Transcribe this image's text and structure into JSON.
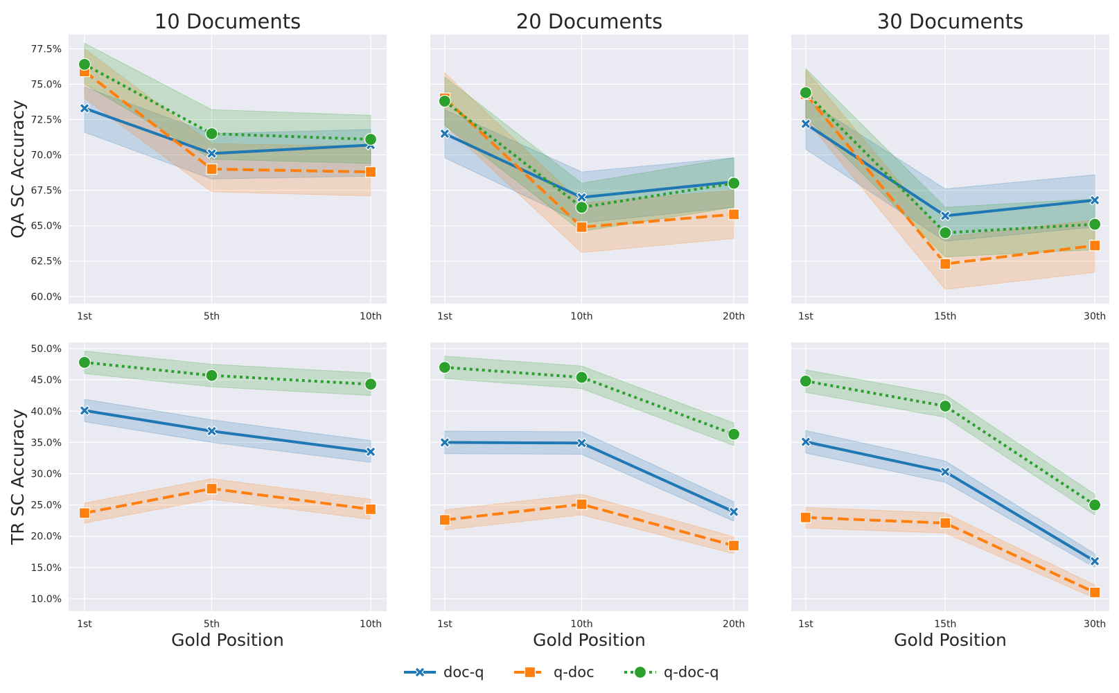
{
  "chart_data": {
    "type": "line",
    "legend": {
      "placement": "bottom-center",
      "entries": [
        {
          "name": "doc-q",
          "color": "#1f77b4",
          "dash": "solid",
          "marker": "x"
        },
        {
          "name": "q-doc",
          "color": "#ff7f0e",
          "dash": "dashed",
          "marker": "square"
        },
        {
          "name": "q-doc-q",
          "color": "#2ca02c",
          "dash": "dotted",
          "marker": "circle"
        }
      ]
    },
    "rows": [
      {
        "ylabel": "QA SC Accuracy",
        "ylim": [
          59.5,
          78.5
        ],
        "ticks": [
          60,
          62.5,
          65,
          67.5,
          70,
          72.5,
          75,
          77.5
        ],
        "tick_labels": [
          "60.0%",
          "62.5%",
          "65.0%",
          "67.5%",
          "70.0%",
          "72.5%",
          "75.0%",
          "77.5%"
        ]
      },
      {
        "ylabel": "TR SC Accuracy",
        "ylim": [
          8,
          51
        ],
        "ticks": [
          10,
          15,
          20,
          25,
          30,
          35,
          40,
          45,
          50
        ],
        "tick_labels": [
          "10.0%",
          "15.0%",
          "20.0%",
          "25.0%",
          "30.0%",
          "35.0%",
          "40.0%",
          "45.0%",
          "50.0%"
        ]
      }
    ],
    "columns": [
      {
        "title": "10 Documents",
        "xlabel": "Gold Position",
        "categories": [
          "1st",
          "5th",
          "10th"
        ],
        "x": [
          1,
          5,
          10
        ],
        "xlim": [
          0.5,
          10.5
        ]
      },
      {
        "title": "20 Documents",
        "xlabel": "Gold Position",
        "categories": [
          "1st",
          "10th",
          "20th"
        ],
        "x": [
          1,
          10,
          20
        ],
        "xlim": [
          0.05,
          20.95
        ]
      },
      {
        "title": "30 Documents",
        "xlabel": "Gold Position",
        "categories": [
          "1st",
          "15th",
          "30th"
        ],
        "x": [
          1,
          15,
          30
        ],
        "xlim": [
          -0.45,
          31.45
        ]
      }
    ],
    "panels": [
      {
        "row": 0,
        "col": 0,
        "series": [
          {
            "name": "doc-q",
            "values": [
              73.3,
              70.1,
              70.7
            ],
            "lower": [
              71.6,
              68.3,
              68.5
            ],
            "upper": [
              74.8,
              71.5,
              71.8
            ]
          },
          {
            "name": "q-doc",
            "values": [
              75.9,
              69.0,
              68.8
            ],
            "lower": [
              74.0,
              67.4,
              67.1
            ],
            "upper": [
              77.5,
              70.8,
              70.6
            ]
          },
          {
            "name": "q-doc-q",
            "values": [
              76.4,
              71.5,
              71.1
            ],
            "lower": [
              75.0,
              69.7,
              69.4
            ],
            "upper": [
              77.9,
              73.2,
              72.8
            ]
          }
        ]
      },
      {
        "row": 0,
        "col": 1,
        "series": [
          {
            "name": "doc-q",
            "values": [
              71.5,
              67.0,
              68.1
            ],
            "lower": [
              69.8,
              65.2,
              66.3
            ],
            "upper": [
              73.2,
              68.8,
              69.8
            ]
          },
          {
            "name": "q-doc",
            "values": [
              74.0,
              64.9,
              65.8
            ],
            "lower": [
              72.1,
              63.1,
              64.1
            ],
            "upper": [
              75.8,
              66.6,
              67.5
            ]
          },
          {
            "name": "q-doc-q",
            "values": [
              73.8,
              66.3,
              68.0
            ],
            "lower": [
              72.1,
              64.6,
              66.3
            ],
            "upper": [
              75.5,
              68.0,
              69.8
            ]
          }
        ]
      },
      {
        "row": 0,
        "col": 2,
        "series": [
          {
            "name": "doc-q",
            "values": [
              72.2,
              65.7,
              66.8
            ],
            "lower": [
              70.4,
              63.9,
              64.9
            ],
            "upper": [
              73.9,
              67.6,
              68.6
            ]
          },
          {
            "name": "q-doc",
            "values": [
              74.3,
              62.3,
              63.6
            ],
            "lower": [
              72.5,
              60.5,
              61.7
            ],
            "upper": [
              76.0,
              64.2,
              65.4
            ]
          },
          {
            "name": "q-doc-q",
            "values": [
              74.4,
              64.5,
              65.1
            ],
            "lower": [
              72.7,
              62.8,
              63.3
            ],
            "upper": [
              76.1,
              66.3,
              66.9
            ]
          }
        ]
      },
      {
        "row": 1,
        "col": 0,
        "series": [
          {
            "name": "doc-q",
            "values": [
              40.1,
              36.8,
              33.5
            ],
            "lower": [
              38.3,
              35.0,
              31.8
            ],
            "upper": [
              41.9,
              38.6,
              35.3
            ]
          },
          {
            "name": "q-doc",
            "values": [
              23.7,
              27.6,
              24.3
            ],
            "lower": [
              22.1,
              25.9,
              22.7
            ],
            "upper": [
              25.3,
              29.2,
              25.9
            ]
          },
          {
            "name": "q-doc-q",
            "values": [
              47.8,
              45.7,
              44.3
            ],
            "lower": [
              46.0,
              43.9,
              42.5
            ],
            "upper": [
              49.6,
              47.5,
              46.1
            ]
          }
        ]
      },
      {
        "row": 1,
        "col": 1,
        "series": [
          {
            "name": "doc-q",
            "values": [
              35.0,
              34.9,
              23.9
            ],
            "lower": [
              33.2,
              33.1,
              22.4
            ],
            "upper": [
              36.8,
              36.7,
              25.5
            ]
          },
          {
            "name": "q-doc",
            "values": [
              22.6,
              25.1,
              18.5
            ],
            "lower": [
              21.0,
              23.4,
              17.2
            ],
            "upper": [
              24.2,
              26.7,
              19.9
            ]
          },
          {
            "name": "q-doc-q",
            "values": [
              47.0,
              45.4,
              36.3
            ],
            "lower": [
              45.2,
              43.6,
              34.5
            ],
            "upper": [
              48.8,
              47.2,
              38.1
            ]
          }
        ]
      },
      {
        "row": 1,
        "col": 2,
        "series": [
          {
            "name": "doc-q",
            "values": [
              35.1,
              30.3,
              16.0
            ],
            "lower": [
              33.3,
              28.6,
              15.0
            ],
            "upper": [
              36.9,
              32.0,
              17.2
            ]
          },
          {
            "name": "q-doc",
            "values": [
              23.0,
              22.1,
              11.0
            ],
            "lower": [
              21.3,
              20.5,
              10.1
            ],
            "upper": [
              24.6,
              23.7,
              12.2
            ]
          },
          {
            "name": "q-doc-q",
            "values": [
              44.8,
              40.8,
              25.0
            ],
            "lower": [
              43.0,
              39.0,
              23.4
            ],
            "upper": [
              46.6,
              42.6,
              26.7
            ]
          }
        ]
      }
    ]
  }
}
